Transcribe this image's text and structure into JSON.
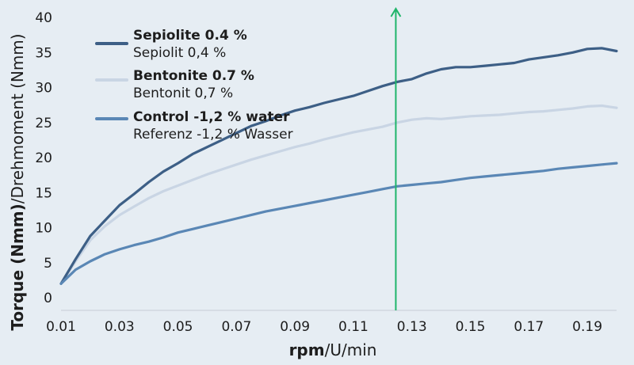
{
  "chart_data": {
    "type": "line",
    "xlabel_bold": "rpm",
    "xlabel_rest": "/U/min",
    "ylabel_bold": "Torque (Nmm)",
    "ylabel_rest": "/Drehmoment (Nmm)",
    "xlim": [
      0.01,
      0.2
    ],
    "ylim": [
      0,
      40
    ],
    "xticks": [
      "0.01",
      "0.03",
      "0.05",
      "0.07",
      "0.09",
      "0.11",
      "0.13",
      "0.15",
      "0.17",
      "0.19"
    ],
    "yticks": [
      "0",
      "5",
      "10",
      "15",
      "20",
      "25",
      "30",
      "35",
      "40"
    ],
    "marker_x": 0.1245,
    "marker_color": "#1fb56a",
    "legend_position": "top-left",
    "grid": false,
    "series": [
      {
        "name": "Sepiolite 0.4 %",
        "name_de": "Sepiolit 0,4 %",
        "color": "#3d5f86",
        "x": [
          0.01,
          0.015,
          0.02,
          0.025,
          0.03,
          0.035,
          0.04,
          0.045,
          0.05,
          0.055,
          0.06,
          0.065,
          0.07,
          0.075,
          0.08,
          0.085,
          0.09,
          0.095,
          0.1,
          0.105,
          0.11,
          0.115,
          0.12,
          0.125,
          0.13,
          0.135,
          0.14,
          0.145,
          0.15,
          0.155,
          0.16,
          0.165,
          0.17,
          0.175,
          0.18,
          0.185,
          0.19,
          0.195,
          0.2
        ],
        "y": [
          2.0,
          5.5,
          8.8,
          11.0,
          13.2,
          14.8,
          16.5,
          18.0,
          19.2,
          20.5,
          21.5,
          22.5,
          23.5,
          24.5,
          25.2,
          26.0,
          26.7,
          27.2,
          27.8,
          28.3,
          28.8,
          29.5,
          30.2,
          30.8,
          31.2,
          32.0,
          32.6,
          32.9,
          32.9,
          33.1,
          33.3,
          33.5,
          34.0,
          34.3,
          34.6,
          35.0,
          35.5,
          35.6,
          35.2
        ]
      },
      {
        "name": "Bentonite 0.7 %",
        "name_de": "Bentonit 0,7 %",
        "color": "#c9d5e4",
        "x": [
          0.01,
          0.015,
          0.02,
          0.025,
          0.03,
          0.035,
          0.04,
          0.045,
          0.05,
          0.055,
          0.06,
          0.065,
          0.07,
          0.075,
          0.08,
          0.085,
          0.09,
          0.095,
          0.1,
          0.105,
          0.11,
          0.115,
          0.12,
          0.125,
          0.13,
          0.135,
          0.14,
          0.145,
          0.15,
          0.155,
          0.16,
          0.165,
          0.17,
          0.175,
          0.18,
          0.185,
          0.19,
          0.195,
          0.2
        ],
        "y": [
          2.0,
          5.2,
          8.2,
          10.2,
          11.8,
          13.0,
          14.2,
          15.2,
          16.0,
          16.8,
          17.6,
          18.3,
          19.0,
          19.7,
          20.3,
          20.9,
          21.5,
          22.0,
          22.6,
          23.1,
          23.6,
          24.0,
          24.4,
          25.0,
          25.4,
          25.6,
          25.5,
          25.7,
          25.9,
          26.0,
          26.1,
          26.3,
          26.5,
          26.6,
          26.8,
          27.0,
          27.3,
          27.4,
          27.1
        ]
      },
      {
        "name": "Control -1,2 % water",
        "name_de": "Referenz -1,2 % Wasser",
        "color": "#5a87b5",
        "x": [
          0.01,
          0.015,
          0.02,
          0.025,
          0.03,
          0.035,
          0.04,
          0.045,
          0.05,
          0.055,
          0.06,
          0.065,
          0.07,
          0.075,
          0.08,
          0.085,
          0.09,
          0.095,
          0.1,
          0.105,
          0.11,
          0.115,
          0.12,
          0.125,
          0.13,
          0.135,
          0.14,
          0.145,
          0.15,
          0.155,
          0.16,
          0.165,
          0.17,
          0.175,
          0.18,
          0.185,
          0.19,
          0.195,
          0.2
        ],
        "y": [
          2.0,
          4.0,
          5.2,
          6.2,
          6.9,
          7.5,
          8.0,
          8.6,
          9.3,
          9.8,
          10.3,
          10.8,
          11.3,
          11.8,
          12.3,
          12.7,
          13.1,
          13.5,
          13.9,
          14.3,
          14.7,
          15.1,
          15.5,
          15.9,
          16.1,
          16.3,
          16.5,
          16.8,
          17.1,
          17.3,
          17.5,
          17.7,
          17.9,
          18.1,
          18.4,
          18.6,
          18.8,
          19.0,
          19.2
        ]
      }
    ]
  }
}
